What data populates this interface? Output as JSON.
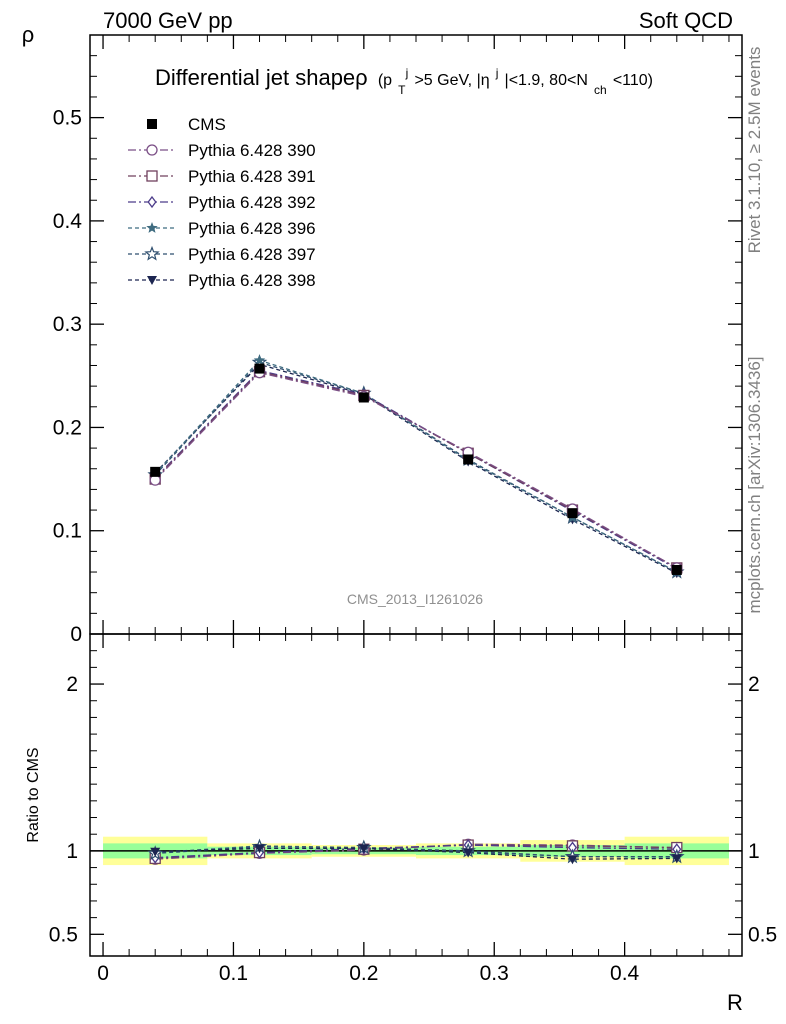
{
  "header": {
    "left": "7000 GeV pp",
    "right": "Soft QCD"
  },
  "side_labels": {
    "rivet": "Rivet 3.1.10, ≥ 2.5M events",
    "mcplots": "mcplots.cern.ch [arXiv:1306.3436]"
  },
  "chart_data": [
    {
      "type": "line",
      "title": "Differential jet shapeρ (p_T^j>5 GeV, |η^j|<1.9, 80<N_ch<110)",
      "title_main": "Differential jet shapeρ",
      "title_sub": "(p",
      "title_parts": [
        "T",
        "j",
        ">5 GeV, |η",
        "j",
        "|<1.9, 80<N",
        "ch",
        "<110)"
      ],
      "ylabel": "ρ",
      "xlabel": "R",
      "watermark": "CMS_2013_I1261026",
      "x": [
        0.04,
        0.12,
        0.2,
        0.28,
        0.36,
        0.44
      ],
      "xlim": [
        -0.01,
        0.49
      ],
      "ylim": [
        0,
        0.58
      ],
      "yticks": [
        0.1,
        0.2,
        0.3,
        0.4,
        0.5
      ],
      "ytick_labels": [
        "0.1",
        "0.2",
        "0.3",
        "0.4",
        "0.5"
      ],
      "y_zero_label": "0",
      "legend_position": "top-left",
      "series": [
        {
          "name": "CMS",
          "values": [
            0.157,
            0.257,
            0.229,
            0.169,
            0.117,
            0.062
          ],
          "color": "#000000",
          "marker": "filled-square",
          "dash": ""
        },
        {
          "name": "Pythia 6.428 390",
          "values": [
            0.149,
            0.253,
            0.23,
            0.176,
            0.121,
            0.064
          ],
          "color": "#7b4f86",
          "marker": "open-circle",
          "dash": "8,3,2,3"
        },
        {
          "name": "Pythia 6.428 391",
          "values": [
            0.15,
            0.254,
            0.231,
            0.175,
            0.12,
            0.064
          ],
          "color": "#70405e",
          "marker": "open-square",
          "dash": "8,3,2,3"
        },
        {
          "name": "Pythia 6.428 392",
          "values": [
            0.151,
            0.255,
            0.232,
            0.175,
            0.119,
            0.063
          ],
          "color": "#4c3c8a",
          "marker": "open-diamond",
          "dash": "8,3,2,3"
        },
        {
          "name": "Pythia 6.428 396",
          "values": [
            0.155,
            0.265,
            0.233,
            0.168,
            0.113,
            0.06
          ],
          "color": "#3f6c80",
          "marker": "filled-star",
          "dash": "4,3"
        },
        {
          "name": "Pythia 6.428 397",
          "values": [
            0.154,
            0.263,
            0.233,
            0.169,
            0.113,
            0.06
          ],
          "color": "#2f4f6f",
          "marker": "open-star",
          "dash": "4,3"
        },
        {
          "name": "Pythia 6.428 398",
          "values": [
            0.156,
            0.261,
            0.232,
            0.167,
            0.111,
            0.059
          ],
          "color": "#1c2550",
          "marker": "filled-triangle-down",
          "dash": "4,3"
        }
      ]
    },
    {
      "type": "line",
      "ylabel": "Ratio to CMS",
      "xlabel": "R",
      "ylim": [
        0.37,
        2.3
      ],
      "yticks": [
        0.5,
        1,
        2
      ],
      "ytick_labels": [
        "0.5",
        "1",
        "2"
      ],
      "xticks": [
        0,
        0.1,
        0.2,
        0.3,
        0.4
      ],
      "xtick_labels": [
        "0",
        "0.1",
        "0.2",
        "0.3",
        "0.4"
      ],
      "bands": {
        "bin_edges": [
          0,
          0.08,
          0.16,
          0.24,
          0.32,
          0.4,
          0.48
        ],
        "yellow_halfwidth": [
          0.085,
          0.045,
          0.035,
          0.045,
          0.065,
          0.085
        ],
        "green_halfwidth": [
          0.045,
          0.025,
          0.02,
          0.025,
          0.035,
          0.045
        ],
        "yellow_color": "#ffff99",
        "green_color": "#99ff99"
      },
      "series": [
        {
          "name": "Pythia 6.428 390",
          "values": [
            0.95,
            0.985,
            1.005,
            1.04,
            1.035,
            1.02
          ]
        },
        {
          "name": "Pythia 6.428 391",
          "values": [
            0.955,
            0.99,
            1.01,
            1.035,
            1.03,
            1.02
          ]
        },
        {
          "name": "Pythia 6.428 392",
          "values": [
            0.96,
            0.99,
            1.015,
            1.035,
            1.02,
            1.01
          ]
        },
        {
          "name": "Pythia 6.428 396",
          "values": [
            0.99,
            1.03,
            1.02,
            0.995,
            0.965,
            0.965
          ]
        },
        {
          "name": "Pythia 6.428 397",
          "values": [
            0.985,
            1.025,
            1.02,
            1.0,
            0.965,
            0.965
          ]
        },
        {
          "name": "Pythia 6.428 398",
          "values": [
            0.995,
            1.015,
            1.015,
            0.99,
            0.95,
            0.955
          ]
        }
      ]
    }
  ]
}
